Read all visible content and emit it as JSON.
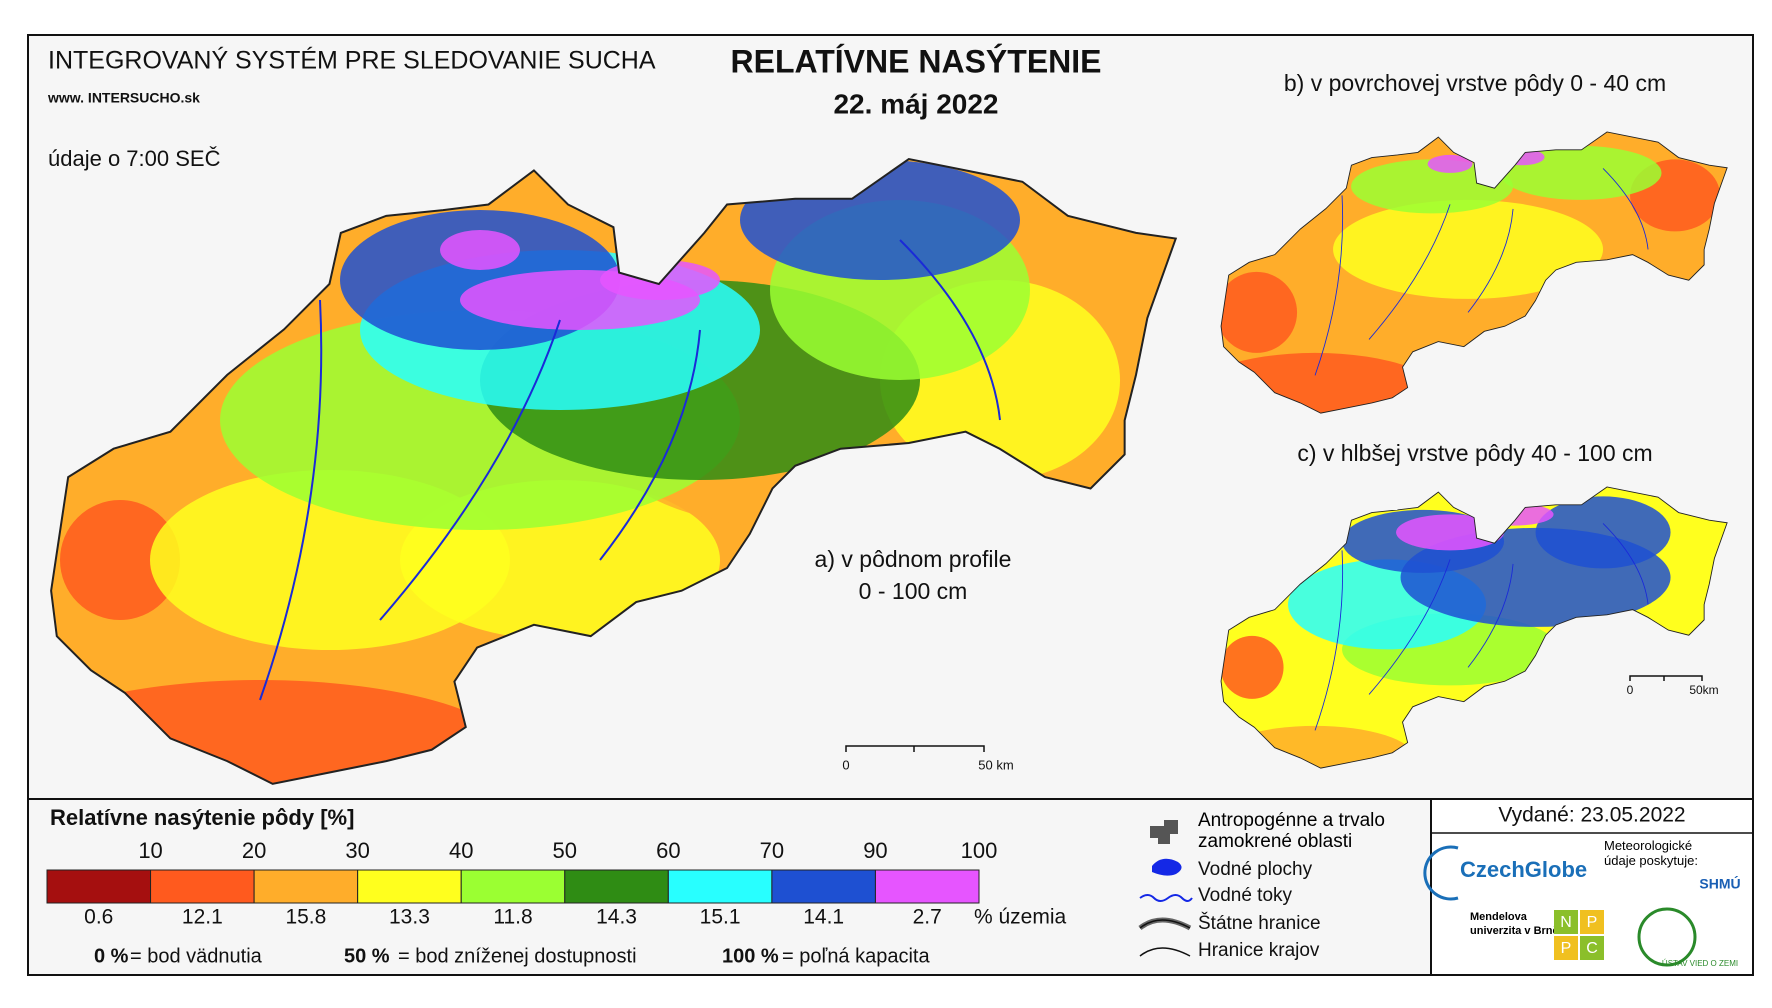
{
  "header": {
    "system": "INTEGROVANÝ SYSTÉM PRE SLEDOVANIE SUCHA",
    "web": "www. INTERSUCHO.sk",
    "time_note": "údaje o 7:00 SEČ",
    "title": "RELATÍVNE NASÝTENIE",
    "date": "22. máj 2022"
  },
  "maps": {
    "a_line1": "a) v pôdnom profile",
    "a_line2": "0 - 100 cm",
    "b": "b) v povrchovej vrstve pôdy 0 - 40 cm",
    "c": "c) v hlbšej vrstve pôdy 40 - 100 cm",
    "scale_zero": "0",
    "scale_main": "50 km",
    "scale_small": "50km"
  },
  "legend": {
    "title": "Relatívne nasýtenie pôdy [%]",
    "bounds": [
      "10",
      "20",
      "30",
      "40",
      "50",
      "60",
      "70",
      "90",
      "100"
    ],
    "colors": [
      "#a50f0f",
      "#ff5a1e",
      "#ffad2a",
      "#ffff1e",
      "#9bff32",
      "#2f8c14",
      "#28ffff",
      "#1e50d2",
      "#e655ff"
    ],
    "shares": [
      "0.6",
      "12.1",
      "15.8",
      "13.3",
      "11.8",
      "14.3",
      "15.1",
      "14.1",
      "2.7"
    ],
    "shares_unit": "% územia",
    "notes": [
      {
        "key": "0 %",
        "text": "= bod vädnutia"
      },
      {
        "key": "50 %",
        "text": "= bod zníženej dostupnosti"
      },
      {
        "key": "100 %",
        "text": "= poľná kapacita"
      }
    ]
  },
  "symbols": [
    "Antropogénne a trvalo zamokrené oblasti",
    "Vodné plochy",
    "Vodné toky",
    "Štátne hranice",
    "Hranice krajov"
  ],
  "issued": "Vydané: 23.05.2022",
  "logos": {
    "czechglobe": "CzechGlobe",
    "meteo": "Meteorologické údaje poskytuje:",
    "shmu": "SHMÚ",
    "mendel": "Mendelova univerzita v Brně",
    "nppc": [
      "N",
      "P",
      "P",
      "C"
    ],
    "uvz": "ÚSTAV VIED O ZEMI"
  }
}
